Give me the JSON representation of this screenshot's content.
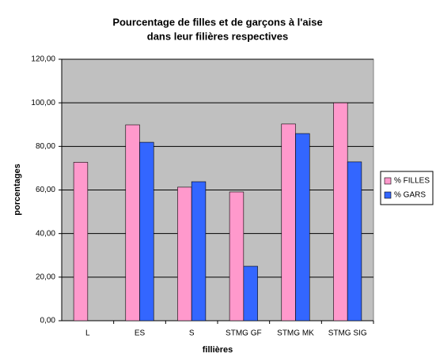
{
  "chart_data": {
    "type": "bar",
    "title": [
      "Pourcentage de filles et de garçons à l'aise",
      "dans leur filières respectives"
    ],
    "x_label": "fillières",
    "y_label": "porcentages",
    "categories": [
      "L",
      "ES",
      "S",
      "STMG GF",
      "STMG MK",
      "STMG SIG"
    ],
    "series": [
      {
        "name": "% FILLES",
        "color": "#ff99cc",
        "values": [
          72.7,
          89.9,
          61.3,
          59.1,
          90.3,
          100
        ]
      },
      {
        "name": "% GARS",
        "color": "#3366ff",
        "values": [
          null,
          81.9,
          63.8,
          25.0,
          85.9,
          72.9
        ]
      }
    ],
    "ylim": [
      0,
      120
    ],
    "yticks": [
      {
        "value": 0,
        "label": "0,00"
      },
      {
        "value": 20,
        "label": "20,00"
      },
      {
        "value": 40,
        "label": "40,00"
      },
      {
        "value": 60,
        "label": "60,00"
      },
      {
        "value": 80,
        "label": "80,00"
      },
      {
        "value": 100,
        "label": "100,00"
      },
      {
        "value": 120,
        "label": "120,00"
      }
    ],
    "grid": true,
    "legend": "right",
    "plot_background": "#c0c0c0"
  }
}
